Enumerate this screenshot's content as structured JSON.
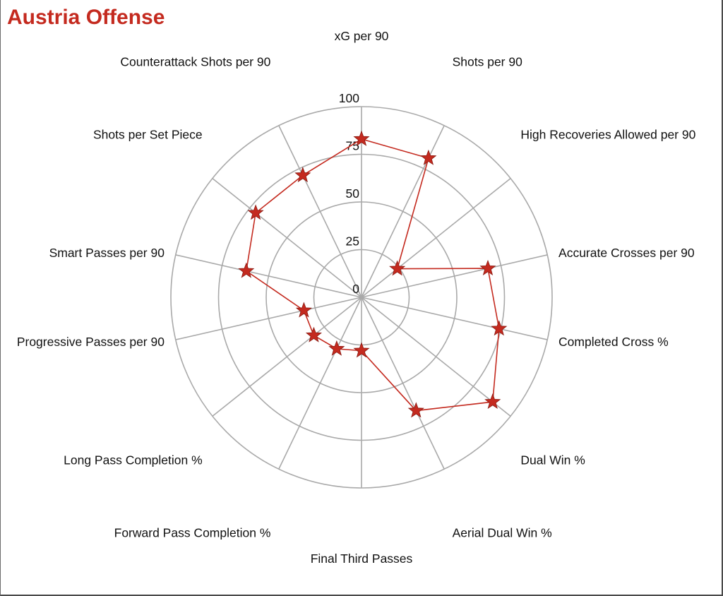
{
  "chart_data": {
    "type": "radar",
    "title": "Austria Offense",
    "rlim": [
      0,
      100
    ],
    "r_ticks": [
      0,
      25,
      50,
      75,
      100
    ],
    "r_tick_labels": [
      "0",
      "25",
      "50",
      "75",
      "100"
    ],
    "grid": true,
    "categories": [
      "xG per 90",
      "Shots per 90",
      "High Recoveries Allowed per 90",
      "Accurate Crosses per 90",
      "Completed Cross %",
      "Dual Win %",
      "Aerial Dual Win %",
      "Final Third Passes",
      "Forward Pass Completion %",
      "Long Pass Completion %",
      "Progressive Passes per 90",
      "Smart Passes per 90",
      "Shots per Set Piece",
      "Counterattack Shots per 90"
    ],
    "series": [
      {
        "values": [
          83,
          81,
          24,
          68,
          74,
          88,
          66,
          28,
          30,
          32,
          31,
          62,
          71,
          71
        ]
      }
    ],
    "colors": {
      "series": "#c42a1f",
      "grid": "#a9a9a9",
      "title": "#c42a1f"
    },
    "marker": "star"
  }
}
